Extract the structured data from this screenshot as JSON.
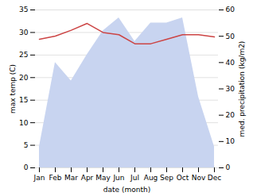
{
  "chart_data": {
    "type": "line",
    "xlabel": "date (month)",
    "ylabel": "max temp (C)",
    "y2label": "med. precipitation (kg/m2)",
    "categories": [
      "Jan",
      "Feb",
      "Mar",
      "Apr",
      "May",
      "Jun",
      "Jul",
      "Aug",
      "Sep",
      "Oct",
      "Nov",
      "Dec"
    ],
    "series": [
      {
        "type": "area",
        "axis": "y2",
        "color": "#c8d4f0",
        "values": [
          8,
          40,
          33,
          43,
          52,
          57,
          48,
          55,
          55,
          57,
          27,
          8
        ]
      },
      {
        "type": "line",
        "color": "#cc4444",
        "values": [
          28.5,
          29.2,
          30.5,
          32.0,
          30.0,
          29.5,
          27.5,
          27.5,
          28.5,
          29.5,
          29.5,
          29.0
        ]
      }
    ],
    "ylim": [
      0,
      35
    ],
    "yticks": [
      0,
      5,
      10,
      15,
      20,
      25,
      30,
      35
    ],
    "y2lim": [
      0,
      60
    ],
    "y2ticks": [
      0,
      10,
      20,
      30,
      40,
      50,
      60
    ],
    "grid": true
  }
}
